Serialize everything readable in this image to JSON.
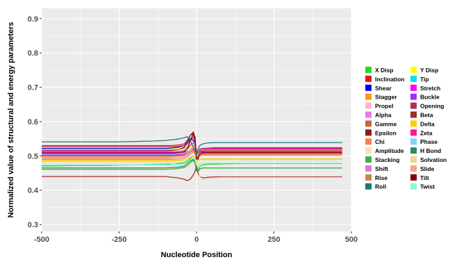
{
  "chart_data": {
    "type": "line",
    "title": "",
    "xlabel": "Nucleotide Position",
    "ylabel": "Normalized value of structural and energy parameters",
    "xlim": [
      -500,
      500
    ],
    "ylim": [
      0.28,
      0.93
    ],
    "x_ticks": [
      -500,
      -250,
      0,
      250,
      500
    ],
    "x_tick_labels": [
      "-500",
      "-250",
      "0",
      "250",
      "500"
    ],
    "y_ticks": [
      0.3,
      0.4,
      0.5,
      0.6,
      0.7,
      0.8,
      0.9
    ],
    "y_tick_labels": [
      "0.3",
      "0.4",
      "0.5",
      "0.6",
      "0.7",
      "0.8",
      "0.9"
    ],
    "grid": true,
    "legend_position": "right",
    "background_color": "#ebebeb",
    "grid_color": "#ffffff",
    "x": [
      -500,
      -450,
      -400,
      -350,
      -300,
      -250,
      -200,
      -150,
      -100,
      -80,
      -60,
      -40,
      -30,
      -20,
      -10,
      -5,
      0,
      5,
      10,
      20,
      30,
      40,
      60,
      80,
      100,
      150,
      200,
      250,
      300,
      350,
      400,
      450,
      470
    ],
    "series": [
      {
        "name": "X Disp",
        "color": "#22dd22",
        "values": [
          0.471,
          0.471,
          0.472,
          0.472,
          0.472,
          0.473,
          0.474,
          0.475,
          0.476,
          0.477,
          0.478,
          0.48,
          0.485,
          0.492,
          0.5,
          0.496,
          0.468,
          0.46,
          0.47,
          0.474,
          0.475,
          0.476,
          0.476,
          0.477,
          0.477,
          0.478,
          0.478,
          0.478,
          0.478,
          0.478,
          0.478,
          0.478,
          0.478
        ]
      },
      {
        "name": "Y Disp",
        "color": "#ffff00",
        "values": [
          0.521,
          0.521,
          0.521,
          0.521,
          0.521,
          0.521,
          0.521,
          0.521,
          0.521,
          0.521,
          0.521,
          0.521,
          0.522,
          0.526,
          0.53,
          0.52,
          0.505,
          0.512,
          0.518,
          0.521,
          0.521,
          0.521,
          0.521,
          0.521,
          0.521,
          0.521,
          0.521,
          0.521,
          0.521,
          0.521,
          0.521,
          0.521,
          0.521
        ]
      },
      {
        "name": "Inclination",
        "color": "#e01818",
        "values": [
          0.53,
          0.53,
          0.53,
          0.53,
          0.53,
          0.53,
          0.53,
          0.53,
          0.53,
          0.53,
          0.532,
          0.535,
          0.545,
          0.56,
          0.565,
          0.54,
          0.5,
          0.505,
          0.515,
          0.521,
          0.522,
          0.523,
          0.524,
          0.524,
          0.524,
          0.524,
          0.524,
          0.524,
          0.524,
          0.524,
          0.524,
          0.524,
          0.524
        ]
      },
      {
        "name": "Tip",
        "color": "#00e5e5",
        "values": [
          0.509,
          0.509,
          0.509,
          0.509,
          0.509,
          0.509,
          0.509,
          0.509,
          0.509,
          0.509,
          0.51,
          0.51,
          0.512,
          0.515,
          0.52,
          0.512,
          0.5,
          0.505,
          0.508,
          0.509,
          0.509,
          0.509,
          0.509,
          0.509,
          0.509,
          0.509,
          0.509,
          0.509,
          0.509,
          0.509,
          0.509,
          0.509,
          0.509
        ]
      },
      {
        "name": "Shear",
        "color": "#0000ee",
        "values": [
          0.522,
          0.522,
          0.522,
          0.522,
          0.522,
          0.522,
          0.522,
          0.522,
          0.522,
          0.523,
          0.525,
          0.53,
          0.54,
          0.55,
          0.545,
          0.525,
          0.5,
          0.505,
          0.512,
          0.514,
          0.515,
          0.515,
          0.515,
          0.515,
          0.515,
          0.515,
          0.515,
          0.515,
          0.515,
          0.515,
          0.515,
          0.515,
          0.515
        ]
      },
      {
        "name": "Stretch",
        "color": "#ff00ff",
        "values": [
          0.51,
          0.51,
          0.51,
          0.51,
          0.51,
          0.51,
          0.51,
          0.51,
          0.51,
          0.51,
          0.51,
          0.511,
          0.512,
          0.515,
          0.52,
          0.515,
          0.505,
          0.51,
          0.518,
          0.52,
          0.52,
          0.52,
          0.52,
          0.52,
          0.52,
          0.52,
          0.52,
          0.52,
          0.52,
          0.52,
          0.52,
          0.52,
          0.52
        ]
      },
      {
        "name": "Stagger",
        "color": "#ff9900",
        "values": [
          0.507,
          0.507,
          0.507,
          0.507,
          0.507,
          0.507,
          0.507,
          0.507,
          0.507,
          0.507,
          0.507,
          0.508,
          0.509,
          0.512,
          0.515,
          0.505,
          0.495,
          0.5,
          0.503,
          0.505,
          0.505,
          0.505,
          0.505,
          0.505,
          0.505,
          0.505,
          0.505,
          0.505,
          0.505,
          0.505,
          0.505,
          0.505,
          0.505
        ]
      },
      {
        "name": "Buckle",
        "color": "#9933ff",
        "values": [
          0.503,
          0.503,
          0.503,
          0.503,
          0.503,
          0.503,
          0.503,
          0.503,
          0.503,
          0.503,
          0.504,
          0.506,
          0.51,
          0.515,
          0.52,
          0.51,
          0.495,
          0.5,
          0.506,
          0.508,
          0.508,
          0.508,
          0.508,
          0.508,
          0.508,
          0.508,
          0.508,
          0.508,
          0.508,
          0.508,
          0.508,
          0.508,
          0.508
        ]
      },
      {
        "name": "Propel",
        "color": "#ffb6c1",
        "values": [
          0.498,
          0.498,
          0.498,
          0.498,
          0.498,
          0.498,
          0.498,
          0.498,
          0.498,
          0.499,
          0.5,
          0.503,
          0.508,
          0.52,
          0.53,
          0.52,
          0.5,
          0.505,
          0.51,
          0.512,
          0.512,
          0.512,
          0.512,
          0.512,
          0.512,
          0.512,
          0.512,
          0.512,
          0.512,
          0.512,
          0.512,
          0.512,
          0.512
        ]
      },
      {
        "name": "Opening",
        "color": "#b03060",
        "values": [
          0.527,
          0.527,
          0.527,
          0.527,
          0.527,
          0.527,
          0.527,
          0.527,
          0.527,
          0.527,
          0.528,
          0.53,
          0.535,
          0.545,
          0.555,
          0.54,
          0.51,
          0.515,
          0.52,
          0.522,
          0.522,
          0.522,
          0.522,
          0.522,
          0.522,
          0.522,
          0.522,
          0.522,
          0.522,
          0.522,
          0.522,
          0.522,
          0.522
        ]
      },
      {
        "name": "Alpha",
        "color": "#e87ce8",
        "values": [
          0.495,
          0.495,
          0.495,
          0.495,
          0.495,
          0.495,
          0.495,
          0.495,
          0.495,
          0.495,
          0.496,
          0.498,
          0.502,
          0.51,
          0.515,
          0.505,
          0.49,
          0.495,
          0.5,
          0.502,
          0.502,
          0.502,
          0.502,
          0.502,
          0.502,
          0.502,
          0.502,
          0.502,
          0.502,
          0.502,
          0.502,
          0.502,
          0.502
        ]
      },
      {
        "name": "Beta",
        "color": "#a52a2a",
        "values": [
          0.44,
          0.44,
          0.44,
          0.44,
          0.44,
          0.44,
          0.44,
          0.44,
          0.44,
          0.438,
          0.436,
          0.432,
          0.428,
          0.432,
          0.445,
          0.455,
          0.47,
          0.45,
          0.44,
          0.436,
          0.437,
          0.438,
          0.439,
          0.439,
          0.439,
          0.439,
          0.439,
          0.439,
          0.439,
          0.439,
          0.439,
          0.439,
          0.439
        ]
      },
      {
        "name": "Gamme",
        "color": "#cd6633",
        "values": [
          0.512,
          0.512,
          0.512,
          0.512,
          0.512,
          0.512,
          0.512,
          0.512,
          0.512,
          0.512,
          0.513,
          0.515,
          0.52,
          0.53,
          0.54,
          0.525,
          0.505,
          0.51,
          0.514,
          0.516,
          0.516,
          0.516,
          0.516,
          0.516,
          0.516,
          0.516,
          0.516,
          0.516,
          0.516,
          0.516,
          0.516,
          0.516,
          0.516
        ]
      },
      {
        "name": "Delta",
        "color": "#ffcc00",
        "values": [
          0.487,
          0.487,
          0.487,
          0.487,
          0.487,
          0.487,
          0.487,
          0.487,
          0.487,
          0.487,
          0.487,
          0.488,
          0.49,
          0.495,
          0.5,
          0.495,
          0.485,
          0.488,
          0.49,
          0.491,
          0.491,
          0.491,
          0.491,
          0.491,
          0.491,
          0.491,
          0.491,
          0.491,
          0.491,
          0.491,
          0.491,
          0.491,
          0.491
        ]
      },
      {
        "name": "Epsilon",
        "color": "#8b1a1a",
        "values": [
          0.515,
          0.515,
          0.515,
          0.515,
          0.515,
          0.515,
          0.515,
          0.515,
          0.515,
          0.516,
          0.518,
          0.525,
          0.54,
          0.56,
          0.57,
          0.55,
          0.5,
          0.49,
          0.505,
          0.51,
          0.51,
          0.51,
          0.51,
          0.51,
          0.51,
          0.51,
          0.51,
          0.51,
          0.51,
          0.51,
          0.51,
          0.51,
          0.51
        ]
      },
      {
        "name": "Zeta",
        "color": "#ff1493",
        "values": [
          0.501,
          0.501,
          0.501,
          0.501,
          0.501,
          0.501,
          0.501,
          0.501,
          0.501,
          0.501,
          0.502,
          0.504,
          0.508,
          0.515,
          0.52,
          0.512,
          0.5,
          0.505,
          0.51,
          0.512,
          0.512,
          0.512,
          0.512,
          0.512,
          0.512,
          0.512,
          0.512,
          0.512,
          0.512,
          0.512,
          0.512,
          0.512,
          0.512
        ]
      },
      {
        "name": "Chi",
        "color": "#ff7f50",
        "values": [
          0.49,
          0.49,
          0.49,
          0.49,
          0.49,
          0.49,
          0.49,
          0.49,
          0.49,
          0.49,
          0.491,
          0.493,
          0.497,
          0.505,
          0.512,
          0.505,
          0.492,
          0.496,
          0.5,
          0.502,
          0.502,
          0.502,
          0.502,
          0.502,
          0.502,
          0.502,
          0.502,
          0.502,
          0.502,
          0.502,
          0.502,
          0.502,
          0.502
        ]
      },
      {
        "name": "Phase",
        "color": "#87cefa",
        "values": [
          0.505,
          0.505,
          0.505,
          0.505,
          0.505,
          0.505,
          0.505,
          0.505,
          0.505,
          0.505,
          0.506,
          0.507,
          0.51,
          0.515,
          0.518,
          0.512,
          0.5,
          0.504,
          0.507,
          0.508,
          0.508,
          0.508,
          0.508,
          0.508,
          0.508,
          0.508,
          0.508,
          0.508,
          0.508,
          0.508,
          0.508,
          0.508,
          0.508
        ]
      },
      {
        "name": "Amplitude",
        "color": "#ffdab9",
        "values": [
          0.48,
          0.48,
          0.48,
          0.48,
          0.48,
          0.48,
          0.48,
          0.48,
          0.48,
          0.478,
          0.475,
          0.47,
          0.465,
          0.47,
          0.485,
          0.5,
          0.51,
          0.47,
          0.44,
          0.43,
          0.432,
          0.434,
          0.436,
          0.437,
          0.437,
          0.437,
          0.437,
          0.437,
          0.437,
          0.437,
          0.437,
          0.437,
          0.437
        ]
      },
      {
        "name": "H Bond",
        "color": "#2e8b57",
        "values": [
          0.465,
          0.465,
          0.465,
          0.465,
          0.465,
          0.465,
          0.465,
          0.465,
          0.465,
          0.466,
          0.467,
          0.47,
          0.478,
          0.485,
          0.49,
          0.482,
          0.46,
          0.455,
          0.462,
          0.465,
          0.465,
          0.465,
          0.465,
          0.465,
          0.465,
          0.465,
          0.465,
          0.465,
          0.465,
          0.465,
          0.465,
          0.465,
          0.465
        ]
      },
      {
        "name": "Stacking",
        "color": "#3cb34a",
        "values": [
          0.461,
          0.461,
          0.461,
          0.461,
          0.461,
          0.461,
          0.461,
          0.461,
          0.461,
          0.462,
          0.463,
          0.466,
          0.472,
          0.48,
          0.488,
          0.478,
          0.455,
          0.458,
          0.463,
          0.465,
          0.465,
          0.465,
          0.465,
          0.465,
          0.465,
          0.465,
          0.465,
          0.465,
          0.465,
          0.465,
          0.465,
          0.465,
          0.465
        ]
      },
      {
        "name": "Solvation",
        "color": "#f0d58c",
        "values": [
          0.484,
          0.484,
          0.484,
          0.484,
          0.484,
          0.484,
          0.484,
          0.484,
          0.484,
          0.484,
          0.485,
          0.487,
          0.491,
          0.497,
          0.503,
          0.495,
          0.482,
          0.485,
          0.488,
          0.489,
          0.489,
          0.489,
          0.489,
          0.489,
          0.489,
          0.489,
          0.489,
          0.489,
          0.489,
          0.489,
          0.489,
          0.489,
          0.489
        ]
      },
      {
        "name": "Shift",
        "color": "#dd77dd",
        "values": [
          0.518,
          0.518,
          0.518,
          0.518,
          0.518,
          0.518,
          0.518,
          0.518,
          0.518,
          0.518,
          0.519,
          0.521,
          0.526,
          0.533,
          0.54,
          0.528,
          0.51,
          0.514,
          0.517,
          0.518,
          0.518,
          0.518,
          0.518,
          0.518,
          0.518,
          0.518,
          0.518,
          0.518,
          0.518,
          0.518,
          0.518,
          0.518,
          0.518
        ]
      },
      {
        "name": "Slide",
        "color": "#f4a582",
        "values": [
          0.493,
          0.493,
          0.493,
          0.493,
          0.493,
          0.493,
          0.493,
          0.493,
          0.493,
          0.494,
          0.496,
          0.5,
          0.507,
          0.518,
          0.525,
          0.515,
          0.495,
          0.5,
          0.505,
          0.507,
          0.507,
          0.507,
          0.507,
          0.507,
          0.507,
          0.507,
          0.507,
          0.507,
          0.507,
          0.507,
          0.507,
          0.507,
          0.507
        ]
      },
      {
        "name": "Rise",
        "color": "#cd853f",
        "values": [
          0.499,
          0.499,
          0.499,
          0.499,
          0.499,
          0.499,
          0.499,
          0.499,
          0.499,
          0.499,
          0.5,
          0.502,
          0.506,
          0.512,
          0.518,
          0.51,
          0.496,
          0.5,
          0.504,
          0.505,
          0.505,
          0.505,
          0.505,
          0.505,
          0.505,
          0.505,
          0.505,
          0.505,
          0.505,
          0.505,
          0.505,
          0.505,
          0.505
        ]
      },
      {
        "name": "Tilt",
        "color": "#800000",
        "values": [
          0.508,
          0.508,
          0.508,
          0.508,
          0.508,
          0.508,
          0.508,
          0.508,
          0.508,
          0.508,
          0.509,
          0.512,
          0.52,
          0.545,
          0.565,
          0.555,
          0.49,
          0.495,
          0.505,
          0.509,
          0.509,
          0.509,
          0.509,
          0.509,
          0.509,
          0.509,
          0.509,
          0.509,
          0.509,
          0.509,
          0.509,
          0.509,
          0.509
        ]
      },
      {
        "name": "Roll",
        "color": "#1a7a7a",
        "values": [
          0.541,
          0.541,
          0.541,
          0.541,
          0.541,
          0.541,
          0.542,
          0.543,
          0.545,
          0.547,
          0.549,
          0.553,
          0.556,
          0.545,
          0.525,
          0.515,
          0.505,
          0.52,
          0.53,
          0.535,
          0.537,
          0.538,
          0.539,
          0.539,
          0.539,
          0.539,
          0.539,
          0.539,
          0.539,
          0.539,
          0.539,
          0.539,
          0.539
        ]
      },
      {
        "name": "Twist",
        "color": "#7fffd4",
        "values": [
          0.474,
          0.474,
          0.474,
          0.474,
          0.474,
          0.474,
          0.474,
          0.474,
          0.474,
          0.474,
          0.475,
          0.477,
          0.481,
          0.488,
          0.495,
          0.488,
          0.472,
          0.475,
          0.478,
          0.479,
          0.479,
          0.479,
          0.479,
          0.479,
          0.479,
          0.479,
          0.479,
          0.479,
          0.479,
          0.479,
          0.479,
          0.479,
          0.479
        ]
      }
    ]
  }
}
